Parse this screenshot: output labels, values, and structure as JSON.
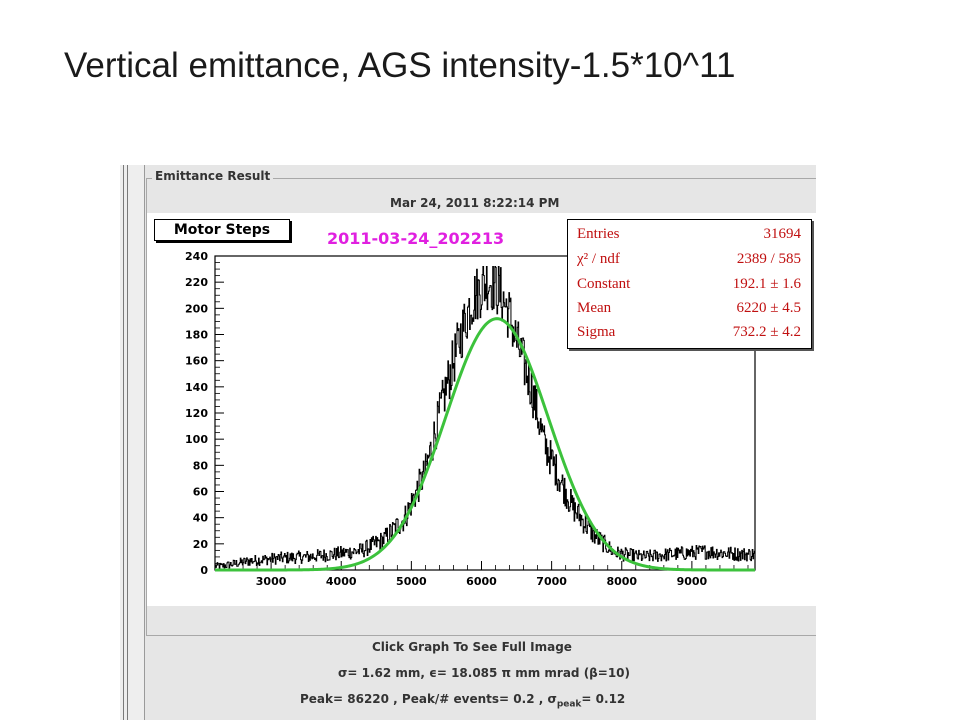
{
  "slide": {
    "title": "Vertical emittance, AGS intensity-1.5*10^11"
  },
  "panel": {
    "label": "Emittance Result",
    "timestamp": "Mar 24, 2011 8:22:14 PM"
  },
  "toolbar": {
    "motor_steps_label": "Motor Steps"
  },
  "histogram": {
    "title": "2011-03-24_202213",
    "title_color": "#e020e0",
    "fit_color": "#3cc23c"
  },
  "stats": [
    {
      "key": "Entries",
      "value": "31694"
    },
    {
      "key": "χ² / ndf",
      "value": "2389 / 585"
    },
    {
      "key": "Constant",
      "value": "192.1 ± 1.6"
    },
    {
      "key": "Mean",
      "value": "6220 ± 4.5"
    },
    {
      "key": "Sigma",
      "value": "732.2 ± 4.2"
    }
  ],
  "footer": {
    "click_hint": "Click Graph To See Full Image",
    "emittance_line": "σ= 1.62 mm, ϵ= 18.085 π mm mrad (β=10)",
    "peak_prefix": "Peak= 86220 , Peak/# events= 0.2 , σ",
    "peak_sub": "peak",
    "peak_suffix": "= 0.12"
  },
  "chart_data": {
    "type": "histogram",
    "title": "2011-03-24_202213",
    "xlim": [
      2200,
      9900
    ],
    "ylim": [
      0,
      240
    ],
    "x_ticks": [
      3000,
      4000,
      5000,
      6000,
      7000,
      8000,
      9000
    ],
    "y_ticks": [
      0,
      20,
      40,
      60,
      80,
      100,
      120,
      140,
      160,
      180,
      200,
      220,
      240
    ],
    "fit": {
      "function": "gaus",
      "constant": 192.1,
      "mean": 6220,
      "sigma": 732.2
    },
    "counts": {
      "x": [
        2300,
        2700,
        3100,
        3500,
        3900,
        4300,
        4600,
        4900,
        5200,
        5500,
        5700,
        5850,
        6000,
        6100,
        6200,
        6300,
        6400,
        6500,
        6700,
        6900,
        7100,
        7300,
        7600,
        7900,
        8300,
        8700,
        9200,
        9700
      ],
      "y": [
        3,
        7,
        9,
        10,
        12,
        15,
        23,
        39,
        75,
        140,
        178,
        205,
        216,
        222,
        218,
        208,
        195,
        175,
        142,
        96,
        72,
        48,
        27,
        13,
        10,
        12,
        14,
        12
      ]
    },
    "entries": 31694
  }
}
